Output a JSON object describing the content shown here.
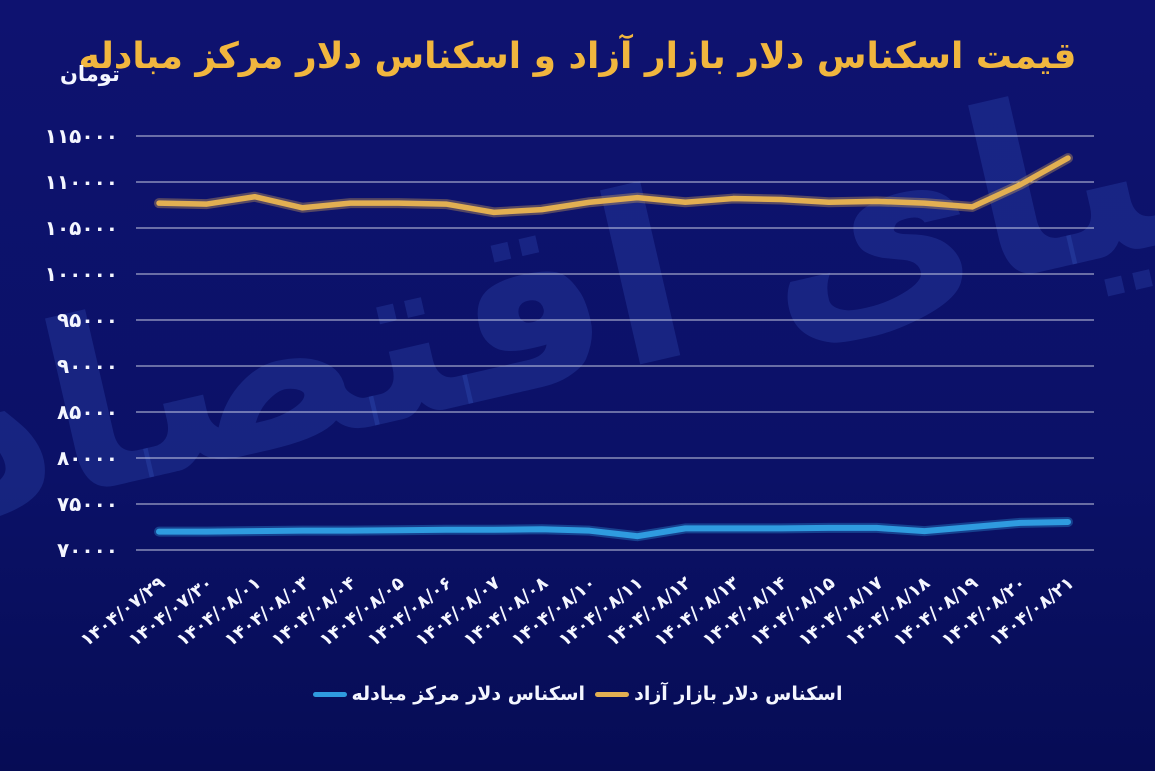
{
  "title": "قیمت اسکناس دلار بازار آزاد و اسکناس دلار مرکز مبادله",
  "unit_label": "تومان",
  "watermark_text": "دنیای اقتصاد",
  "colors": {
    "background": "#0B1167",
    "title": "#F1B63E",
    "axis_text": "#F4F6FF",
    "gridline": "#E9EBF7",
    "free_market_line": "#E2AF52",
    "exchange_center_line": "#2F9BDF",
    "watermark": "#3E63D2"
  },
  "legend": [
    {
      "label": "اسکناس دلار بازار آزاد",
      "color": "#E2AF52"
    },
    {
      "label": "اسکناس دلار مرکز مبادله",
      "color": "#2F9BDF"
    }
  ],
  "chart_data": {
    "type": "line",
    "title": "قیمت اسکناس دلار بازار آزاد و اسکناس دلار مرکز مبادله",
    "ylabel": "تومان",
    "ylim": [
      70000,
      115000
    ],
    "y_tick_step": 5000,
    "grid": "horizontal",
    "legend_position": "bottom-center",
    "y_ticks": [
      {
        "value": 115000,
        "label": "۱۱۵۰۰۰"
      },
      {
        "value": 110000,
        "label": "۱۱۰۰۰۰"
      },
      {
        "value": 105000,
        "label": "۱۰۵۰۰۰"
      },
      {
        "value": 100000,
        "label": "۱۰۰۰۰۰"
      },
      {
        "value": 95000,
        "label": "۹۵۰۰۰"
      },
      {
        "value": 90000,
        "label": "۹۰۰۰۰"
      },
      {
        "value": 85000,
        "label": "۸۵۰۰۰"
      },
      {
        "value": 80000,
        "label": "۸۰۰۰۰"
      },
      {
        "value": 75000,
        "label": "۷۵۰۰۰"
      },
      {
        "value": 70000,
        "label": "۷۰۰۰۰"
      }
    ],
    "x_labels": [
      "۱۴۰۴/۰۷/۲۹",
      "۱۴۰۴/۰۷/۳۰",
      "۱۴۰۴/۰۸/۰۱",
      "۱۴۰۴/۰۸/۰۳",
      "۱۴۰۴/۰۸/۰۴",
      "۱۴۰۴/۰۸/۰۵",
      "۱۴۰۴/۰۸/۰۶",
      "۱۴۰۴/۰۸/۰۷",
      "۱۴۰۴/۰۸/۰۸",
      "۱۴۰۴/۰۸/۱۰",
      "۱۴۰۴/۰۸/۱۱",
      "۱۴۰۴/۰۸/۱۲",
      "۱۴۰۴/۰۸/۱۳",
      "۱۴۰۴/۰۸/۱۴",
      "۱۴۰۴/۰۸/۱۵",
      "۱۴۰۴/۰۸/۱۷",
      "۱۴۰۴/۰۸/۱۸",
      "۱۴۰۴/۰۸/۱۹",
      "۱۴۰۴/۰۸/۲۰",
      "۱۴۰۴/۰۸/۲۱"
    ],
    "series": [
      {
        "name": "اسکناس دلار بازار آزاد",
        "data_name": "series-line-free-market",
        "color": "#E2AF52",
        "values": [
          107700,
          107600,
          108400,
          107200,
          107700,
          107700,
          107600,
          106700,
          107000,
          107800,
          108300,
          107800,
          108200,
          108100,
          107800,
          107900,
          107700,
          107300,
          109700,
          112600
        ]
      },
      {
        "name": "اسکناس دلار مرکز مبادله",
        "data_name": "series-line-exchange-center",
        "color": "#2F9BDF",
        "values": [
          72000,
          72000,
          72050,
          72100,
          72100,
          72150,
          72200,
          72200,
          72250,
          72100,
          71500,
          72350,
          72350,
          72350,
          72400,
          72400,
          72050,
          72500,
          72950,
          73050
        ]
      }
    ]
  }
}
